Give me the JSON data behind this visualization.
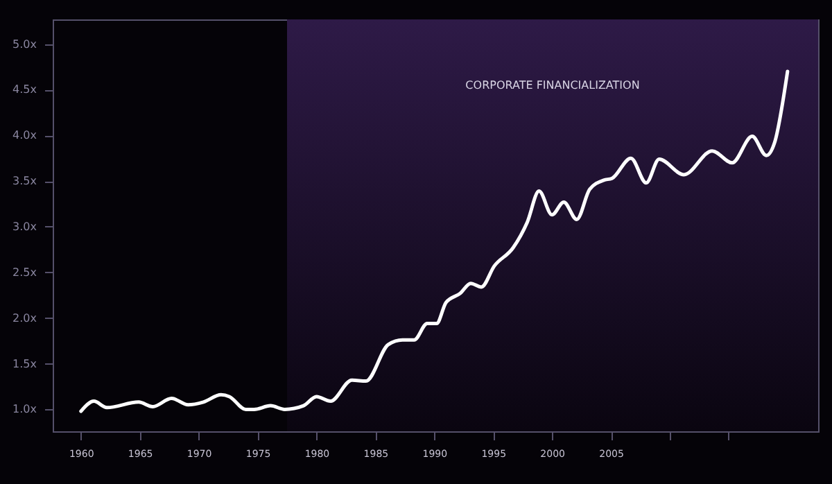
{
  "chart_data": {
    "type": "line",
    "x": [
      1960,
      1961.1,
      1962.2,
      1964.9,
      1966.1,
      1967.7,
      1969.1,
      1970.4,
      1971.9,
      1972.6,
      1974.0,
      1974.7,
      1976.1,
      1977.3,
      1978.9,
      1980.0,
      1981.2,
      1983.0,
      1984.2,
      1986.1,
      1987.3,
      1988.3,
      1989.4,
      1990.2,
      1991.0,
      1992.2,
      1993.1,
      1994.0,
      1995.1,
      1996.7,
      1997.9,
      1998.9,
      2000.0,
      2001.0,
      2002.1,
      2003.2,
      2004.4,
      2005.1,
      2006.7,
      2008.0,
      2009.1,
      2011.2,
      2013.6,
      2015.3,
      2017.0,
      2018.2,
      2018.9,
      2020.0
    ],
    "series": [
      {
        "color": "#ffffff",
        "values": [
          0.98,
          1.09,
          1.02,
          1.08,
          1.03,
          1.12,
          1.05,
          1.08,
          1.16,
          1.14,
          1.0,
          1.0,
          1.04,
          1.0,
          1.04,
          1.14,
          1.09,
          1.32,
          1.31,
          1.71,
          1.76,
          1.76,
          1.94,
          1.94,
          2.17,
          2.27,
          2.38,
          2.34,
          2.57,
          2.77,
          3.05,
          3.39,
          3.13,
          3.27,
          3.08,
          3.41,
          3.51,
          3.53,
          3.75,
          3.48,
          3.74,
          3.57,
          3.83,
          3.7,
          3.99,
          3.78,
          3.92,
          4.7
        ]
      }
    ],
    "xlim": [
      1957.6,
      2022.6
    ],
    "xticks": [
      1960,
      1965,
      1970,
      1975,
      1980,
      1985,
      1990,
      1995,
      2000,
      2005,
      {
        "value": 2010,
        "label": null
      },
      {
        "value": 2015,
        "label": null
      }
    ],
    "ylim": [
      0.76,
      5.27
    ],
    "yticks": [
      {
        "value": 1.0,
        "label": "1.0x"
      },
      {
        "value": 1.5,
        "label": "1.5x"
      },
      {
        "value": 2.0,
        "label": "2.0x"
      },
      {
        "value": 2.5,
        "label": "2.5x"
      },
      {
        "value": 3.0,
        "label": "3.0x"
      },
      {
        "value": 3.5,
        "label": "3.5x"
      },
      {
        "value": 4.0,
        "label": "4.0x"
      },
      {
        "value": 4.5,
        "label": "4.5x"
      },
      {
        "value": 5.0,
        "label": "5.0x"
      }
    ],
    "bands": [
      {
        "axis": "x",
        "from": 1977.5,
        "to": 2022.6,
        "label": "CORPORATE FINANCIALIZATION",
        "color": "#2e1a47"
      }
    ],
    "grid": false,
    "marker": "none",
    "line_style": "solid"
  }
}
